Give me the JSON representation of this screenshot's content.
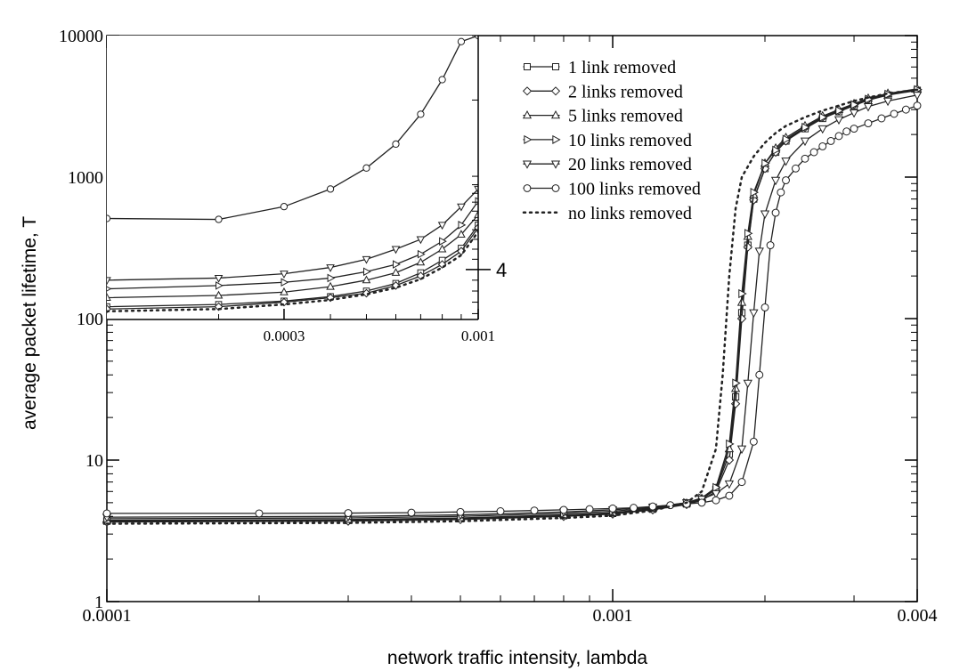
{
  "chart_data": [
    {
      "type": "line",
      "xscale": "log",
      "yscale": "log",
      "xlim": [
        0.0001,
        0.004
      ],
      "ylim": [
        1,
        10000
      ],
      "xlabel": "network traffic intensity, lambda",
      "ylabel": "average packet lifetime, T",
      "xticks": [
        {
          "value": 0.0001,
          "label": "0.0001"
        },
        {
          "value": 0.001,
          "label": "0.001"
        },
        {
          "value": 0.004,
          "label": "0.004"
        }
      ],
      "yticks": [
        {
          "value": 1,
          "label": "1"
        },
        {
          "value": 10,
          "label": "10"
        },
        {
          "value": 100,
          "label": "100"
        },
        {
          "value": 1000,
          "label": "1000"
        },
        {
          "value": 10000,
          "label": "10000"
        }
      ],
      "legend_position": "top-right",
      "series": [
        {
          "name": "1 link removed",
          "marker": "square",
          "dash": false,
          "x": [
            0.0001,
            0.0003,
            0.0005,
            0.0008,
            0.001,
            0.0012,
            0.0014,
            0.0015,
            0.0016,
            0.0017,
            0.00175,
            0.0018,
            0.00185,
            0.0019,
            0.002,
            0.0021,
            0.0022,
            0.0024,
            0.0026,
            0.0028,
            0.003,
            0.0032,
            0.0035,
            0.004
          ],
          "y": [
            3.7,
            3.75,
            3.85,
            4.05,
            4.2,
            4.5,
            4.9,
            5.3,
            6.2,
            11,
            28,
            110,
            330,
            700,
            1150,
            1500,
            1800,
            2200,
            2600,
            2900,
            3200,
            3500,
            3800,
            4100
          ]
        },
        {
          "name": "2 links removed",
          "marker": "diamond",
          "dash": false,
          "x": [
            0.0001,
            0.0003,
            0.0005,
            0.0008,
            0.001,
            0.0012,
            0.0014,
            0.0015,
            0.0016,
            0.0017,
            0.00175,
            0.0018,
            0.00185,
            0.0019,
            0.002,
            0.0021,
            0.0022,
            0.0024,
            0.0026,
            0.0028,
            0.003,
            0.0032,
            0.0035,
            0.004
          ],
          "y": [
            3.65,
            3.7,
            3.8,
            4.0,
            4.15,
            4.45,
            4.85,
            5.2,
            6.0,
            10,
            25,
            100,
            320,
            690,
            1150,
            1500,
            1800,
            2250,
            2650,
            2950,
            3250,
            3550,
            3850,
            4150
          ]
        },
        {
          "name": "5 links removed",
          "marker": "triangle-up",
          "dash": false,
          "x": [
            0.0001,
            0.0003,
            0.0005,
            0.0008,
            0.001,
            0.0012,
            0.0014,
            0.0015,
            0.0016,
            0.0017,
            0.00175,
            0.0018,
            0.00185,
            0.0019,
            0.002,
            0.0021,
            0.0022,
            0.0024,
            0.0026,
            0.0028,
            0.003,
            0.0032,
            0.0035,
            0.004
          ],
          "y": [
            3.75,
            3.8,
            3.9,
            4.1,
            4.25,
            4.55,
            4.95,
            5.35,
            6.3,
            12,
            32,
            130,
            380,
            750,
            1250,
            1600,
            1900,
            2300,
            2700,
            3000,
            3300,
            3600,
            3900,
            4200
          ]
        },
        {
          "name": "10 links removed",
          "marker": "triangle-right",
          "dash": false,
          "x": [
            0.0001,
            0.0003,
            0.0005,
            0.0008,
            0.001,
            0.0012,
            0.0014,
            0.0015,
            0.0016,
            0.0017,
            0.00175,
            0.0018,
            0.00185,
            0.0019,
            0.002,
            0.0021,
            0.0022,
            0.0024,
            0.0026,
            0.0028,
            0.003,
            0.0032,
            0.0035,
            0.004
          ],
          "y": [
            3.85,
            3.9,
            4.0,
            4.2,
            4.35,
            4.6,
            5.0,
            5.4,
            6.4,
            13,
            35,
            150,
            400,
            780,
            1250,
            1550,
            1850,
            2250,
            2650,
            2950,
            3250,
            3550,
            3850,
            4150
          ]
        },
        {
          "name": "20 links removed",
          "marker": "triangle-down",
          "dash": false,
          "x": [
            0.0001,
            0.0003,
            0.0005,
            0.0008,
            0.001,
            0.0012,
            0.0014,
            0.0015,
            0.0016,
            0.0017,
            0.0018,
            0.00185,
            0.0019,
            0.00195,
            0.002,
            0.0021,
            0.0022,
            0.0024,
            0.0026,
            0.0028,
            0.003,
            0.0032,
            0.0035,
            0.004
          ],
          "y": [
            3.95,
            4.0,
            4.1,
            4.3,
            4.45,
            4.65,
            5.0,
            5.3,
            5.8,
            6.8,
            12,
            35,
            110,
            300,
            550,
            950,
            1300,
            1800,
            2200,
            2550,
            2850,
            3150,
            3450,
            3800
          ]
        },
        {
          "name": "100 links removed",
          "marker": "circle",
          "dash": false,
          "x": [
            0.0001,
            0.0002,
            0.0003,
            0.0004,
            0.0005,
            0.0006,
            0.0007,
            0.0008,
            0.0009,
            0.001,
            0.0011,
            0.0012,
            0.0013,
            0.0014,
            0.0015,
            0.0016,
            0.0017,
            0.0018,
            0.0019,
            0.00195,
            0.002,
            0.00205,
            0.0021,
            0.00215,
            0.0022,
            0.0023,
            0.0024,
            0.0025,
            0.0026,
            0.0027,
            0.0028,
            0.0029,
            0.003,
            0.0032,
            0.0034,
            0.0036,
            0.0038,
            0.004
          ],
          "y": [
            4.2,
            4.2,
            4.22,
            4.25,
            4.3,
            4.35,
            4.4,
            4.45,
            4.5,
            4.55,
            4.6,
            4.7,
            4.8,
            4.9,
            5.0,
            5.2,
            5.6,
            7.0,
            13.5,
            40,
            120,
            330,
            560,
            780,
            950,
            1150,
            1350,
            1500,
            1650,
            1800,
            1950,
            2100,
            2200,
            2400,
            2600,
            2800,
            3000,
            3200
          ]
        },
        {
          "name": "no links removed",
          "marker": "none",
          "dash": true,
          "x": [
            0.0001,
            0.0003,
            0.0005,
            0.0008,
            0.001,
            0.0012,
            0.0014,
            0.0015,
            0.0016,
            0.00165,
            0.0017,
            0.00175,
            0.0018,
            0.0019,
            0.002,
            0.0021,
            0.0022,
            0.0024,
            0.0026,
            0.0028,
            0.003,
            0.0032,
            0.0035,
            0.004
          ],
          "y": [
            3.55,
            3.6,
            3.7,
            3.9,
            4.05,
            4.4,
            5.0,
            6.0,
            12,
            40,
            200,
            600,
            1000,
            1400,
            1750,
            2050,
            2300,
            2650,
            2950,
            3200,
            3450,
            3650,
            3900,
            4150
          ]
        }
      ]
    },
    {
      "type": "line",
      "inset": true,
      "xscale": "log",
      "yscale": "log",
      "xlim": [
        0.0001,
        0.001
      ],
      "ylim": [
        3.55,
        7.0
      ],
      "xticks": [
        {
          "value": 0.0003,
          "label": "0.0003"
        },
        {
          "value": 0.001,
          "label": "0.001"
        }
      ],
      "yticks": [
        {
          "value": 4,
          "label": "4"
        }
      ],
      "series": [
        {
          "name": "1 link removed",
          "marker": "square",
          "x": [
            0.0001,
            0.0002,
            0.0003,
            0.0004,
            0.0005,
            0.0006,
            0.0007,
            0.0008,
            0.0009,
            0.001
          ],
          "y": [
            3.66,
            3.68,
            3.71,
            3.75,
            3.8,
            3.87,
            3.97,
            4.09,
            4.21,
            4.45
          ]
        },
        {
          "name": "2 links removed",
          "marker": "diamond",
          "x": [
            0.0001,
            0.0002,
            0.0003,
            0.0004,
            0.0005,
            0.0006,
            0.0007,
            0.0008,
            0.0009,
            0.001
          ],
          "y": [
            3.64,
            3.66,
            3.7,
            3.74,
            3.78,
            3.85,
            3.94,
            4.05,
            4.18,
            4.42
          ]
        },
        {
          "name": "5 links removed",
          "marker": "triangle-up",
          "x": [
            0.0001,
            0.0002,
            0.0003,
            0.0004,
            0.0005,
            0.0006,
            0.0007,
            0.0008,
            0.0009,
            0.001
          ],
          "y": [
            3.74,
            3.76,
            3.79,
            3.84,
            3.9,
            3.97,
            4.07,
            4.2,
            4.35,
            4.56
          ]
        },
        {
          "name": "10 links removed",
          "marker": "triangle-right",
          "x": [
            0.0001,
            0.0002,
            0.0003,
            0.0004,
            0.0005,
            0.0006,
            0.0007,
            0.0008,
            0.0009,
            0.001
          ],
          "y": [
            3.82,
            3.85,
            3.88,
            3.92,
            3.98,
            4.05,
            4.15,
            4.28,
            4.45,
            4.71
          ]
        },
        {
          "name": "20 links removed",
          "marker": "triangle-down",
          "x": [
            0.0001,
            0.0002,
            0.0003,
            0.0004,
            0.0005,
            0.0006,
            0.0007,
            0.0008,
            0.0009,
            0.001
          ],
          "y": [
            3.9,
            3.92,
            3.96,
            4.02,
            4.1,
            4.2,
            4.3,
            4.45,
            4.65,
            4.85
          ]
        },
        {
          "name": "100 links removed",
          "marker": "circle",
          "x": [
            0.0001,
            0.0002,
            0.0003,
            0.0004,
            0.0005,
            0.0006,
            0.0007,
            0.0008,
            0.0009,
            0.001
          ],
          "y": [
            4.52,
            4.51,
            4.65,
            4.85,
            5.1,
            5.4,
            5.8,
            6.3,
            6.9,
            7.0
          ]
        },
        {
          "name": "no links removed",
          "marker": "none",
          "dash": true,
          "x": [
            0.0001,
            0.0002,
            0.0003,
            0.0004,
            0.0005,
            0.0006,
            0.0007,
            0.0008,
            0.0009,
            0.001
          ],
          "y": [
            3.62,
            3.64,
            3.68,
            3.72,
            3.77,
            3.83,
            3.91,
            4.02,
            4.14,
            4.38
          ]
        }
      ]
    }
  ]
}
